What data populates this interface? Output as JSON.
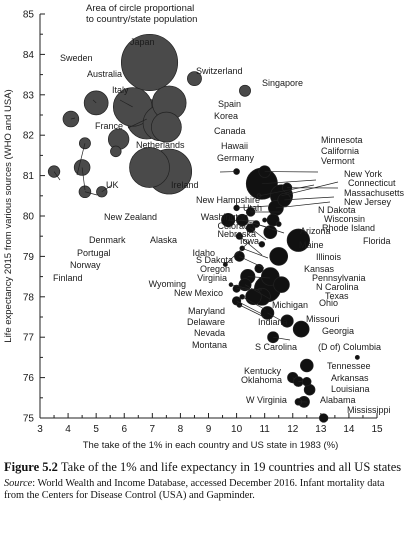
{
  "chart_data": {
    "type": "scatter",
    "annotation": [
      "Area of circle proportional",
      "to country/state population"
    ],
    "xlabel": "The take of the 1% in each country and US state in 1983 (%)",
    "ylabel": "Life expectancy 2015 from various sources (WHO and USA)",
    "xlim": [
      3,
      15
    ],
    "ylim": [
      75,
      85
    ],
    "xticks": [
      "3",
      "3.5",
      "4",
      "4.5",
      "5",
      "5.5",
      "6",
      "6.5",
      "7",
      "7.5",
      "8",
      "8.5",
      "9",
      "9.5",
      "10",
      "10.5",
      "11",
      "11.5",
      "12",
      "12.5",
      "13",
      "13.5",
      "14",
      "14.5",
      "15"
    ],
    "yticks": [
      "75",
      "76",
      "77",
      "78",
      "79",
      "80",
      "81",
      "82",
      "83",
      "84",
      "85"
    ],
    "points": [
      {
        "label": "Japan",
        "x": 6.9,
        "y": 83.8,
        "size": 127
      },
      {
        "label": "Switzerland",
        "x": 8.5,
        "y": 83.4,
        "size": 8
      },
      {
        "label": "Singapore",
        "x": 10.3,
        "y": 83.1,
        "size": 5
      },
      {
        "label": "Sweden",
        "x": 4.1,
        "y": 82.4,
        "size": 10
      },
      {
        "label": "Australia",
        "x": 5.0,
        "y": 82.8,
        "size": 23
      },
      {
        "label": "Italy",
        "x": 6.3,
        "y": 82.7,
        "size": 60
      },
      {
        "label": "Spain",
        "x": 7.6,
        "y": 82.8,
        "size": 46
      },
      {
        "label": "France",
        "x": 6.8,
        "y": 82.4,
        "size": 64
      },
      {
        "label": "Korea",
        "x": 7.3,
        "y": 82.3,
        "size": 50
      },
      {
        "label": "Canada",
        "x": 7.5,
        "y": 82.2,
        "size": 36
      },
      {
        "label": "Netherlands",
        "x": 5.8,
        "y": 81.9,
        "size": 17
      },
      {
        "label": "Germany",
        "x": 7.6,
        "y": 81.1,
        "size": 81
      },
      {
        "label": "UK",
        "x": 6.9,
        "y": 81.2,
        "size": 64
      },
      {
        "label": "Ireland",
        "x": 5.7,
        "y": 81.6,
        "size": 4.6
      },
      {
        "label": "New Zealand",
        "x": 5.2,
        "y": 80.6,
        "size": 4.5
      },
      {
        "label": "Denmark",
        "x": 4.6,
        "y": 80.6,
        "size": 5.6
      },
      {
        "label": "Portugal",
        "x": 4.5,
        "y": 81.2,
        "size": 10
      },
      {
        "label": "Norway",
        "x": 4.6,
        "y": 81.8,
        "size": 5
      },
      {
        "label": "Finland",
        "x": 3.5,
        "y": 81.1,
        "size": 5.4
      },
      {
        "label": "Hawaii",
        "x": 10.0,
        "y": 81.1,
        "size": 1.4
      },
      {
        "label": "Minnesota",
        "x": 11.0,
        "y": 81.1,
        "size": 5.5
      },
      {
        "label": "California",
        "x": 10.9,
        "y": 80.8,
        "size": 39
      },
      {
        "label": "Vermont",
        "x": 10.8,
        "y": 80.5,
        "size": 0.6
      },
      {
        "label": "New York",
        "x": 11.6,
        "y": 80.5,
        "size": 19.8
      },
      {
        "label": "Connecticut",
        "x": 11.8,
        "y": 80.7,
        "size": 3.6
      },
      {
        "label": "Massachusetts",
        "x": 11.7,
        "y": 80.4,
        "size": 6.8
      },
      {
        "label": "New Jersey",
        "x": 11.4,
        "y": 80.2,
        "size": 9
      },
      {
        "label": "N Dakota",
        "x": 11.0,
        "y": 79.9,
        "size": 0.7
      },
      {
        "label": "Wisconsin",
        "x": 11.3,
        "y": 79.9,
        "size": 5.8
      },
      {
        "label": "Rhode Island",
        "x": 11.5,
        "y": 79.8,
        "size": 1
      },
      {
        "label": "Florida",
        "x": 12.2,
        "y": 79.4,
        "size": 20.3
      },
      {
        "label": "New Hampshire",
        "x": 10.0,
        "y": 80.2,
        "size": 1.3
      },
      {
        "label": "Utah",
        "x": 10.5,
        "y": 80.1,
        "size": 3
      },
      {
        "label": "Washington",
        "x": 9.7,
        "y": 79.9,
        "size": 7.2
      },
      {
        "label": "Colorado",
        "x": 10.2,
        "y": 79.9,
        "size": 5.5
      },
      {
        "label": "Nebraska",
        "x": 10.7,
        "y": 79.8,
        "size": 1.9
      },
      {
        "label": "Arizona",
        "x": 11.2,
        "y": 79.6,
        "size": 6.8
      },
      {
        "label": "Alaska",
        "x": 9.6,
        "y": 78.8,
        "size": 0.7
      },
      {
        "label": "Iowa",
        "x": 10.5,
        "y": 79.7,
        "size": 3.1
      },
      {
        "label": "Idaho",
        "x": 10.1,
        "y": 79.5,
        "size": 1.7
      },
      {
        "label": "Maine",
        "x": 10.9,
        "y": 79.3,
        "size": 1.3
      },
      {
        "label": "S Dakota",
        "x": 10.2,
        "y": 79.2,
        "size": 0.9
      },
      {
        "label": "Oregon",
        "x": 10.1,
        "y": 79.0,
        "size": 4
      },
      {
        "label": "Illinois",
        "x": 11.5,
        "y": 79.0,
        "size": 12.9
      },
      {
        "label": "Kansas",
        "x": 10.8,
        "y": 78.7,
        "size": 2.9
      },
      {
        "label": "Pennsylvania",
        "x": 11.2,
        "y": 78.5,
        "size": 12.8
      },
      {
        "label": "N Carolina",
        "x": 11.6,
        "y": 78.3,
        "size": 10
      },
      {
        "label": "Virginia",
        "x": 10.4,
        "y": 78.5,
        "size": 8.4
      },
      {
        "label": "Wyoming",
        "x": 9.8,
        "y": 78.3,
        "size": 0.6
      },
      {
        "label": "New Mexico",
        "x": 10.0,
        "y": 78.2,
        "size": 2.1
      },
      {
        "label": "Texas",
        "x": 11.1,
        "y": 78.2,
        "size": 27.5
      },
      {
        "label": "Ohio",
        "x": 10.9,
        "y": 78.0,
        "size": 11.6
      },
      {
        "label": "Michigan",
        "x": 10.6,
        "y": 78.0,
        "size": 9.9
      },
      {
        "label": "Maryland",
        "x": 10.3,
        "y": 78.3,
        "size": 6
      },
      {
        "label": "Delaware",
        "x": 10.2,
        "y": 78.0,
        "size": 0.9
      },
      {
        "label": "Nevada",
        "x": 10.0,
        "y": 77.9,
        "size": 2.9
      },
      {
        "label": "Montana",
        "x": 10.1,
        "y": 77.8,
        "size": 1
      },
      {
        "label": "Indiana",
        "x": 11.1,
        "y": 77.6,
        "size": 6.6
      },
      {
        "label": "Missouri",
        "x": 11.8,
        "y": 77.4,
        "size": 6.1
      },
      {
        "label": "Georgia",
        "x": 12.3,
        "y": 77.2,
        "size": 10.2
      },
      {
        "label": "S Carolina",
        "x": 11.3,
        "y": 77.0,
        "size": 4.9
      },
      {
        "label": "(D of) Columbia",
        "x": 14.3,
        "y": 76.5,
        "size": 0.7
      },
      {
        "label": "Tennessee",
        "x": 12.5,
        "y": 76.3,
        "size": 6.6
      },
      {
        "label": "Kentucky",
        "x": 12.0,
        "y": 76.0,
        "size": 4.4
      },
      {
        "label": "Arkansas",
        "x": 12.5,
        "y": 75.9,
        "size": 3
      },
      {
        "label": "Oklahoma",
        "x": 12.2,
        "y": 75.9,
        "size": 3.9
      },
      {
        "label": "Louisiana",
        "x": 12.6,
        "y": 75.7,
        "size": 4.7
      },
      {
        "label": "W Virginia",
        "x": 12.2,
        "y": 75.4,
        "size": 1.8
      },
      {
        "label": "Alabama",
        "x": 12.4,
        "y": 75.4,
        "size": 4.9
      },
      {
        "label": "Mississippi",
        "x": 13.1,
        "y": 75.0,
        "size": 3
      }
    ]
  },
  "caption": {
    "figure_number": "Figure 5.2",
    "title": "Take of the 1% and life expectancy in 19 countries and all US states",
    "source_label": "Source",
    "source_text": ": World Wealth and Income Database, accessed December 2016. Infant mortality data from the Centers for Disease Control (USA) and Gapminder."
  },
  "colors": {
    "bubble_fill": "#4a4a4a",
    "state_fill": "#111111",
    "axis": "#222222"
  }
}
